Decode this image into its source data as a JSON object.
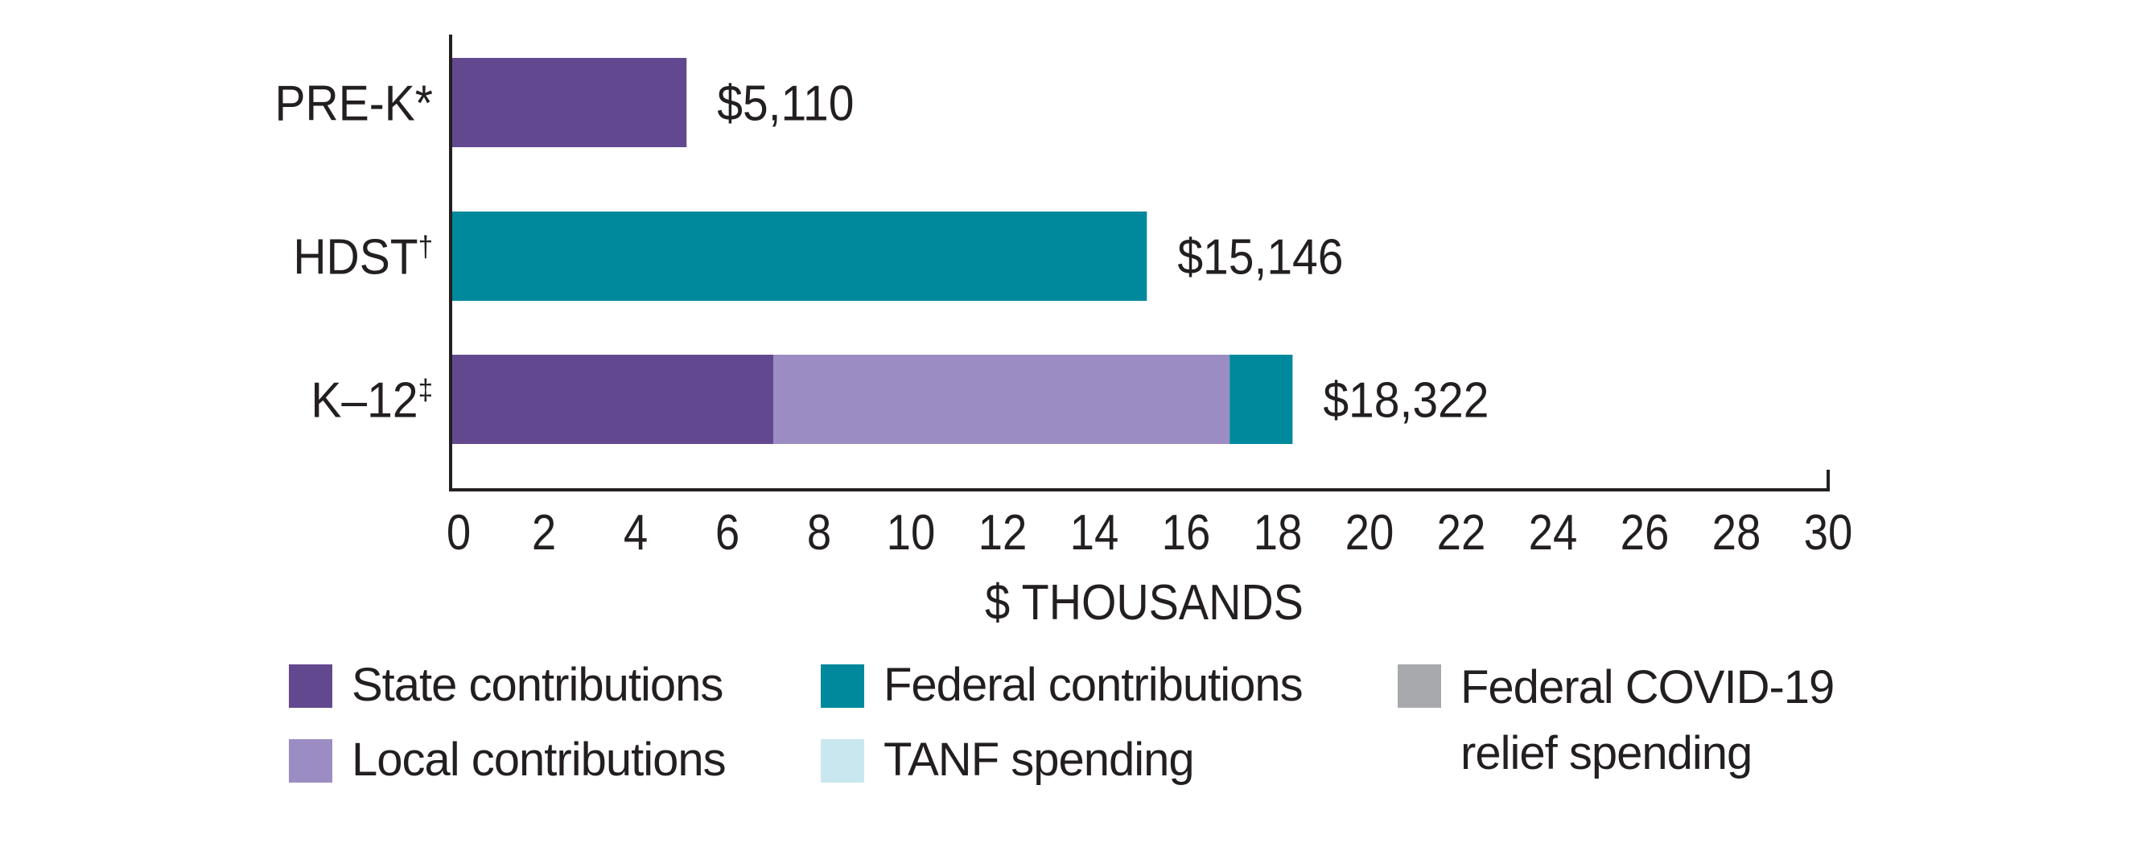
{
  "chart_data": {
    "type": "bar",
    "orientation": "horizontal",
    "stacked": true,
    "title": "",
    "xlabel": "$ THOUSANDS",
    "ylabel": "",
    "xlim": [
      0,
      30
    ],
    "x_ticks": [
      "0",
      "2",
      "4",
      "6",
      "8",
      "10",
      "12",
      "14",
      "16",
      "18",
      "20",
      "22",
      "24",
      "26",
      "28",
      "30"
    ],
    "grid": false,
    "categories": [
      {
        "label": "PRE-K",
        "marker": "*"
      },
      {
        "label": "HDST",
        "marker": "†"
      },
      {
        "label": "K–12",
        "marker": "‡"
      }
    ],
    "totals_labels": [
      "$5,110",
      "$15,146",
      "$18,322"
    ],
    "totals": [
      5.11,
      15.146,
      18.322
    ],
    "series": [
      {
        "name": "State contributions",
        "color": "#62498f",
        "values": [
          5.11,
          0,
          7.0
        ]
      },
      {
        "name": "Local contributions",
        "color": "#9b8dc3",
        "values": [
          0,
          0,
          9.95
        ]
      },
      {
        "name": "Federal contributions",
        "color": "#00899c",
        "values": [
          0,
          15.146,
          1.372
        ]
      },
      {
        "name": "TANF spending",
        "color": "#c9e7ee",
        "values": [
          0,
          0,
          0
        ]
      },
      {
        "name": "Federal COVID-19 relief spending",
        "color": "#a7a9ac",
        "values": [
          0,
          0,
          0
        ]
      }
    ],
    "legend": {
      "placement": "bottom",
      "items": [
        {
          "label": "State contributions",
          "color": "#62498f"
        },
        {
          "label": "Federal contributions",
          "color": "#00899c"
        },
        {
          "label": "Federal COVID-19 relief spending",
          "color": "#a7a9ac"
        },
        {
          "label": "Local contributions",
          "color": "#9b8dc3"
        },
        {
          "label": "TANF spending",
          "color": "#c9e7ee"
        }
      ]
    }
  }
}
